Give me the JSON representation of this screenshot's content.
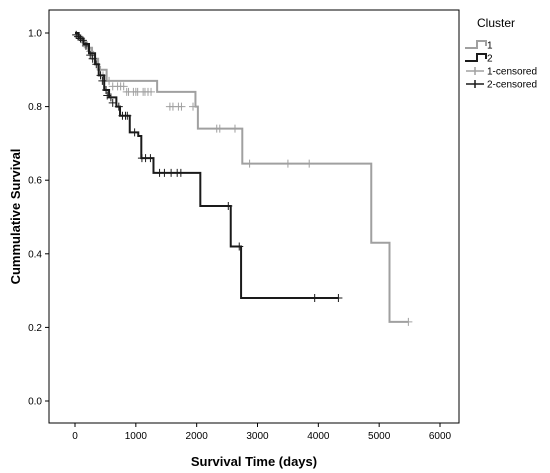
{
  "chart_data": {
    "type": "line",
    "subtype": "kaplan-meier-step",
    "xlabel": "Survival Time (days)",
    "ylabel": "Cummulative Survival",
    "xlim": [
      0,
      6000
    ],
    "ylim": [
      0.0,
      1.0
    ],
    "x_ticks": [
      0,
      1000,
      2000,
      3000,
      4000,
      5000,
      6000
    ],
    "y_ticks": [
      0.0,
      0.2,
      0.4,
      0.6,
      0.8,
      1.0
    ],
    "x_tick_labels": [
      "0",
      "1000",
      "2000",
      "3000",
      "4000",
      "5000",
      "6000"
    ],
    "y_tick_labels": [
      "0.0",
      "0.2",
      "0.4",
      "0.6",
      "0.8",
      "1.0"
    ],
    "grid": false,
    "legend": {
      "title": "Cluster",
      "placement": "top-right-outside",
      "entries": [
        {
          "label": "1",
          "kind": "line",
          "series": 0
        },
        {
          "label": "2",
          "kind": "line",
          "series": 1
        },
        {
          "label": "1-censored",
          "kind": "censor",
          "series": 0
        },
        {
          "label": "2-censored",
          "kind": "censor",
          "series": 1
        }
      ]
    },
    "series": [
      {
        "name": "1",
        "color": "#a0a0a0",
        "steps": [
          [
            0,
            1.0
          ],
          [
            40,
            0.99
          ],
          [
            110,
            0.975
          ],
          [
            190,
            0.96
          ],
          [
            280,
            0.93
          ],
          [
            380,
            0.9
          ],
          [
            520,
            0.87
          ],
          [
            1350,
            0.84
          ],
          [
            1980,
            0.8
          ],
          [
            2020,
            0.74
          ],
          [
            2750,
            0.645
          ],
          [
            4870,
            0.43
          ],
          [
            5170,
            0.215
          ],
          [
            5480,
            0.215
          ]
        ],
        "censored": [
          [
            20,
            0.995
          ],
          [
            60,
            0.99
          ],
          [
            100,
            0.985
          ],
          [
            150,
            0.975
          ],
          [
            210,
            0.96
          ],
          [
            250,
            0.95
          ],
          [
            320,
            0.93
          ],
          [
            420,
            0.9
          ],
          [
            460,
            0.885
          ],
          [
            560,
            0.87
          ],
          [
            620,
            0.855
          ],
          [
            700,
            0.855
          ],
          [
            750,
            0.855
          ],
          [
            800,
            0.855
          ],
          [
            850,
            0.84
          ],
          [
            880,
            0.84
          ],
          [
            960,
            0.84
          ],
          [
            1000,
            0.84
          ],
          [
            1030,
            0.84
          ],
          [
            1120,
            0.84
          ],
          [
            1150,
            0.84
          ],
          [
            1200,
            0.84
          ],
          [
            1250,
            0.84
          ],
          [
            1560,
            0.8
          ],
          [
            1610,
            0.8
          ],
          [
            1700,
            0.8
          ],
          [
            1750,
            0.8
          ],
          [
            1940,
            0.8
          ],
          [
            2330,
            0.74
          ],
          [
            2380,
            0.74
          ],
          [
            2630,
            0.74
          ],
          [
            2870,
            0.645
          ],
          [
            3500,
            0.645
          ],
          [
            3850,
            0.645
          ],
          [
            5480,
            0.215
          ]
        ]
      },
      {
        "name": "2",
        "color": "#1a1a1a",
        "steps": [
          [
            0,
            1.0
          ],
          [
            60,
            0.985
          ],
          [
            140,
            0.97
          ],
          [
            230,
            0.945
          ],
          [
            330,
            0.915
          ],
          [
            390,
            0.885
          ],
          [
            480,
            0.845
          ],
          [
            560,
            0.825
          ],
          [
            680,
            0.8
          ],
          [
            740,
            0.775
          ],
          [
            900,
            0.73
          ],
          [
            1040,
            0.72
          ],
          [
            1090,
            0.66
          ],
          [
            1290,
            0.62
          ],
          [
            2060,
            0.53
          ],
          [
            2560,
            0.42
          ],
          [
            2730,
            0.28
          ],
          [
            4330,
            0.28
          ]
        ],
        "censored": [
          [
            20,
            0.995
          ],
          [
            50,
            0.99
          ],
          [
            90,
            0.985
          ],
          [
            130,
            0.98
          ],
          [
            180,
            0.965
          ],
          [
            250,
            0.94
          ],
          [
            290,
            0.93
          ],
          [
            350,
            0.915
          ],
          [
            420,
            0.885
          ],
          [
            450,
            0.87
          ],
          [
            510,
            0.845
          ],
          [
            530,
            0.83
          ],
          [
            590,
            0.825
          ],
          [
            620,
            0.81
          ],
          [
            720,
            0.8
          ],
          [
            780,
            0.775
          ],
          [
            830,
            0.775
          ],
          [
            860,
            0.775
          ],
          [
            980,
            0.73
          ],
          [
            1100,
            0.66
          ],
          [
            1160,
            0.66
          ],
          [
            1240,
            0.66
          ],
          [
            1390,
            0.62
          ],
          [
            1470,
            0.62
          ],
          [
            1580,
            0.62
          ],
          [
            1680,
            0.62
          ],
          [
            1740,
            0.62
          ],
          [
            2520,
            0.53
          ],
          [
            2700,
            0.42
          ],
          [
            3940,
            0.28
          ],
          [
            4330,
            0.28
          ]
        ]
      }
    ]
  }
}
